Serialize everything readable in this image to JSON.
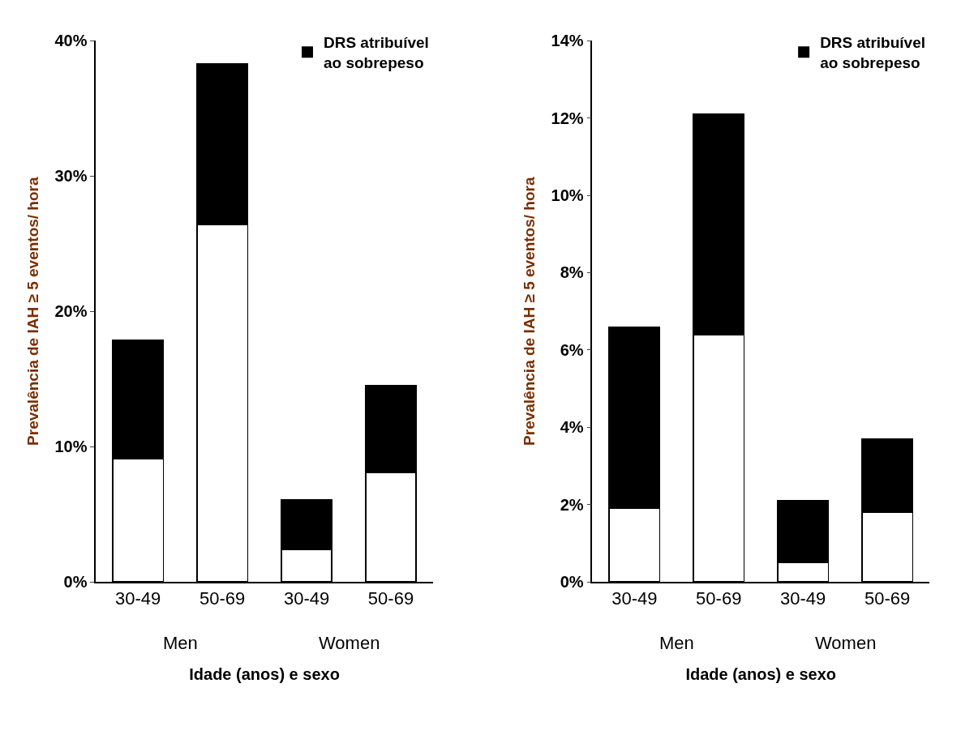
{
  "chart_data": [
    {
      "type": "bar",
      "stacked": true,
      "categories": [
        "30-49",
        "50-69",
        "30-49",
        "50-69"
      ],
      "annotations": [
        "Men",
        "Women"
      ],
      "xlabel": "Idade (anos) e sexo",
      "ylabel": "Prevalência de IAH ≥ 5 eventos/ hora",
      "ylim": [
        0,
        40
      ],
      "yticks": [
        {
          "value": 0,
          "label": "0%"
        },
        {
          "value": 10,
          "label": "10%"
        },
        {
          "value": 20,
          "label": "20%"
        },
        {
          "value": 30,
          "label": "30%"
        },
        {
          "value": 40,
          "label": "40%"
        }
      ],
      "legend": "top right",
      "series": [
        {
          "color": "#ffffff",
          "values": [
            9.1,
            26.4,
            2.4,
            8.1
          ]
        },
        {
          "name": "DRS atribuível ao sobrepeso",
          "color": "#000000",
          "values": [
            8.8,
            11.9,
            3.7,
            6.4
          ]
        }
      ]
    },
    {
      "type": "bar",
      "stacked": true,
      "categories": [
        "30-49",
        "50-69",
        "30-49",
        "50-69"
      ],
      "annotations": [
        "Men",
        "Women"
      ],
      "xlabel": "Idade (anos) e sexo",
      "ylabel": "Prevalência de IAH ≥ 5 eventos/ hora",
      "ylim": [
        0,
        14
      ],
      "yticks": [
        {
          "value": 0,
          "label": "0%"
        },
        {
          "value": 2,
          "label": "2%"
        },
        {
          "value": 4,
          "label": "4%"
        },
        {
          "value": 6,
          "label": "6%"
        },
        {
          "value": 8,
          "label": "8%"
        },
        {
          "value": 10,
          "label": "10%"
        },
        {
          "value": 12,
          "label": "12%"
        },
        {
          "value": 14,
          "label": "14%"
        }
      ],
      "legend": "top right",
      "series": [
        {
          "color": "#ffffff",
          "values": [
            1.9,
            6.4,
            0.5,
            1.8
          ]
        },
        {
          "name": "DRS atribuível ao sobrepeso",
          "color": "#000000",
          "values": [
            4.7,
            5.7,
            1.6,
            1.9
          ]
        }
      ]
    }
  ]
}
